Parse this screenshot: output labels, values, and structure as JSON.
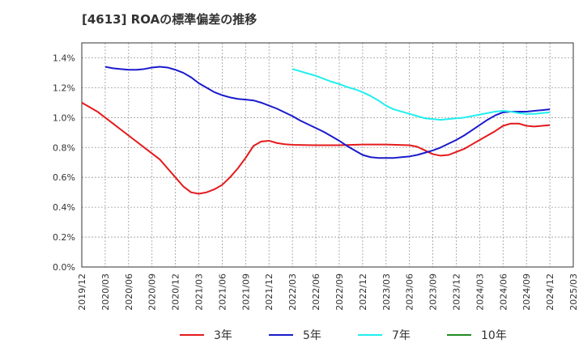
{
  "chart_data": {
    "type": "line",
    "title": "[4613]  ROAの標準偏差の推移",
    "xlabel": "",
    "ylabel": "",
    "ylim": [
      0,
      1.5
    ],
    "y_ticks": [
      "0.0%",
      "0.2%",
      "0.4%",
      "0.6%",
      "0.8%",
      "1.0%",
      "1.2%",
      "1.4%"
    ],
    "y_tick_values": [
      0,
      0.2,
      0.4,
      0.6,
      0.8,
      1.0,
      1.2,
      1.4
    ],
    "x_ticks": [
      "2019/12",
      "2020/03",
      "2020/06",
      "2020/09",
      "2020/12",
      "2021/03",
      "2021/06",
      "2021/09",
      "2021/12",
      "2022/03",
      "2022/06",
      "2022/09",
      "2022/12",
      "2023/03",
      "2023/06",
      "2023/09",
      "2023/12",
      "2024/03",
      "2024/06",
      "2024/09",
      "2024/12",
      "2025/03"
    ],
    "grid": true,
    "legend_position": "bottom",
    "series": [
      {
        "name": "3年",
        "color": "#e41a1c",
        "points": [
          [
            "2019/12",
            1.1
          ],
          [
            "2020/01",
            1.07
          ],
          [
            "2020/02",
            1.04
          ],
          [
            "2020/03",
            1.0
          ],
          [
            "2020/04",
            0.96
          ],
          [
            "2020/05",
            0.92
          ],
          [
            "2020/06",
            0.88
          ],
          [
            "2020/07",
            0.84
          ],
          [
            "2020/08",
            0.8
          ],
          [
            "2020/09",
            0.76
          ],
          [
            "2020/10",
            0.72
          ],
          [
            "2020/11",
            0.66
          ],
          [
            "2020/12",
            0.6
          ],
          [
            "2021/01",
            0.54
          ],
          [
            "2021/02",
            0.5
          ],
          [
            "2021/03",
            0.49
          ],
          [
            "2021/04",
            0.5
          ],
          [
            "2021/05",
            0.52
          ],
          [
            "2021/06",
            0.55
          ],
          [
            "2021/07",
            0.6
          ],
          [
            "2021/08",
            0.66
          ],
          [
            "2021/09",
            0.73
          ],
          [
            "2021/10",
            0.81
          ],
          [
            "2021/11",
            0.84
          ],
          [
            "2021/12",
            0.845
          ],
          [
            "2022/01",
            0.83
          ],
          [
            "2022/02",
            0.822
          ],
          [
            "2022/03",
            0.818
          ],
          [
            "2022/06",
            0.815
          ],
          [
            "2022/09",
            0.815
          ],
          [
            "2022/12",
            0.82
          ],
          [
            "2023/03",
            0.82
          ],
          [
            "2023/06",
            0.815
          ],
          [
            "2023/07",
            0.805
          ],
          [
            "2023/08",
            0.78
          ],
          [
            "2023/09",
            0.755
          ],
          [
            "2023/10",
            0.745
          ],
          [
            "2023/11",
            0.75
          ],
          [
            "2023/12",
            0.77
          ],
          [
            "2024/01",
            0.79
          ],
          [
            "2024/02",
            0.82
          ],
          [
            "2024/03",
            0.85
          ],
          [
            "2024/04",
            0.88
          ],
          [
            "2024/05",
            0.91
          ],
          [
            "2024/06",
            0.945
          ],
          [
            "2024/07",
            0.96
          ],
          [
            "2024/08",
            0.96
          ],
          [
            "2024/09",
            0.945
          ],
          [
            "2024/10",
            0.94
          ],
          [
            "2024/11",
            0.945
          ],
          [
            "2024/12",
            0.95
          ]
        ]
      },
      {
        "name": "5年",
        "color": "#1a1acc",
        "points": [
          [
            "2020/03",
            1.34
          ],
          [
            "2020/04",
            1.33
          ],
          [
            "2020/05",
            1.325
          ],
          [
            "2020/06",
            1.32
          ],
          [
            "2020/07",
            1.32
          ],
          [
            "2020/08",
            1.325
          ],
          [
            "2020/09",
            1.335
          ],
          [
            "2020/10",
            1.34
          ],
          [
            "2020/11",
            1.335
          ],
          [
            "2020/12",
            1.32
          ],
          [
            "2021/01",
            1.3
          ],
          [
            "2021/02",
            1.27
          ],
          [
            "2021/03",
            1.23
          ],
          [
            "2021/04",
            1.2
          ],
          [
            "2021/05",
            1.17
          ],
          [
            "2021/06",
            1.15
          ],
          [
            "2021/07",
            1.135
          ],
          [
            "2021/08",
            1.125
          ],
          [
            "2021/09",
            1.12
          ],
          [
            "2021/10",
            1.115
          ],
          [
            "2021/11",
            1.1
          ],
          [
            "2021/12",
            1.08
          ],
          [
            "2022/01",
            1.06
          ],
          [
            "2022/02",
            1.035
          ],
          [
            "2022/03",
            1.01
          ],
          [
            "2022/04",
            0.98
          ],
          [
            "2022/05",
            0.955
          ],
          [
            "2022/06",
            0.93
          ],
          [
            "2022/07",
            0.905
          ],
          [
            "2022/08",
            0.875
          ],
          [
            "2022/09",
            0.845
          ],
          [
            "2022/10",
            0.81
          ],
          [
            "2022/11",
            0.78
          ],
          [
            "2022/12",
            0.75
          ],
          [
            "2023/01",
            0.735
          ],
          [
            "2023/02",
            0.73
          ],
          [
            "2023/03",
            0.73
          ],
          [
            "2023/04",
            0.73
          ],
          [
            "2023/05",
            0.735
          ],
          [
            "2023/06",
            0.74
          ],
          [
            "2023/07",
            0.75
          ],
          [
            "2023/08",
            0.765
          ],
          [
            "2023/09",
            0.78
          ],
          [
            "2023/10",
            0.8
          ],
          [
            "2023/11",
            0.825
          ],
          [
            "2023/12",
            0.85
          ],
          [
            "2024/01",
            0.88
          ],
          [
            "2024/02",
            0.915
          ],
          [
            "2024/03",
            0.95
          ],
          [
            "2024/04",
            0.985
          ],
          [
            "2024/05",
            1.015
          ],
          [
            "2024/06",
            1.035
          ],
          [
            "2024/07",
            1.04
          ],
          [
            "2024/08",
            1.04
          ],
          [
            "2024/09",
            1.04
          ],
          [
            "2024/10",
            1.045
          ],
          [
            "2024/11",
            1.05
          ],
          [
            "2024/12",
            1.055
          ]
        ]
      },
      {
        "name": "7年",
        "color": "#22eeee",
        "points": [
          [
            "2022/03",
            1.325
          ],
          [
            "2022/04",
            1.31
          ],
          [
            "2022/05",
            1.295
          ],
          [
            "2022/06",
            1.28
          ],
          [
            "2022/07",
            1.26
          ],
          [
            "2022/08",
            1.24
          ],
          [
            "2022/09",
            1.225
          ],
          [
            "2022/10",
            1.205
          ],
          [
            "2022/11",
            1.19
          ],
          [
            "2022/12",
            1.17
          ],
          [
            "2023/01",
            1.145
          ],
          [
            "2023/02",
            1.115
          ],
          [
            "2023/03",
            1.08
          ],
          [
            "2023/04",
            1.055
          ],
          [
            "2023/05",
            1.04
          ],
          [
            "2023/06",
            1.025
          ],
          [
            "2023/07",
            1.01
          ],
          [
            "2023/08",
            0.995
          ],
          [
            "2023/09",
            0.99
          ],
          [
            "2023/10",
            0.985
          ],
          [
            "2023/11",
            0.99
          ],
          [
            "2023/12",
            0.995
          ],
          [
            "2024/01",
            1.0
          ],
          [
            "2024/02",
            1.01
          ],
          [
            "2024/03",
            1.02
          ],
          [
            "2024/04",
            1.03
          ],
          [
            "2024/05",
            1.04
          ],
          [
            "2024/06",
            1.045
          ],
          [
            "2024/07",
            1.04
          ],
          [
            "2024/08",
            1.03
          ],
          [
            "2024/09",
            1.025
          ],
          [
            "2024/10",
            1.025
          ],
          [
            "2024/11",
            1.03
          ],
          [
            "2024/12",
            1.035
          ]
        ]
      },
      {
        "name": "10年",
        "color": "#228b22",
        "points": []
      }
    ]
  }
}
